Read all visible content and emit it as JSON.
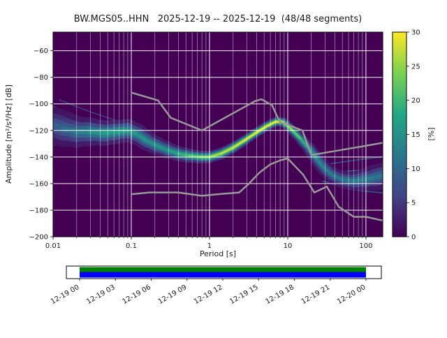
{
  "chart_data": {
    "type": "heatmap",
    "title": "BW.MGS05..HHN   2025-12-19 -- 2025-12-19  (48/48 segments)",
    "xlabel": "Period [s]",
    "ylabel": "Amplitude [m²/s⁴/Hz] [dB]",
    "xscale": "log",
    "xlim": [
      0.01,
      164
    ],
    "ylim": [
      -200,
      -46
    ],
    "grid": true,
    "grid_color": "#ffffff",
    "xticks": {
      "values": [
        0.01,
        0.1,
        1,
        10,
        100
      ],
      "labels": [
        "0.01",
        "0.1",
        "1",
        "10",
        "100"
      ]
    },
    "yticks": {
      "values": [
        -60,
        -80,
        -100,
        -120,
        -140,
        -160,
        -180,
        -200
      ],
      "labels": [
        "−60",
        "−80",
        "−100",
        "−120",
        "−140",
        "−160",
        "−180",
        "−200"
      ]
    },
    "colorbar": {
      "label": "[%]",
      "min": 0,
      "max": 30,
      "ticks": [
        0,
        5,
        10,
        15,
        20,
        25,
        30
      ],
      "stops": [
        "#440154",
        "#414487",
        "#2a788e",
        "#22a884",
        "#7ad151",
        "#fde725"
      ]
    },
    "ridge": {
      "comment": "PPSD mode ridge: [period_s, amplitude_dB, half_spread_dB, peak_percent]",
      "points": [
        [
          0.01,
          -116.0,
          13.0,
          8
        ],
        [
          0.014,
          -119.0,
          11.0,
          10
        ],
        [
          0.02,
          -121.0,
          10.0,
          12
        ],
        [
          0.03,
          -121.0,
          9.0,
          14
        ],
        [
          0.045,
          -122.0,
          8.0,
          16
        ],
        [
          0.065,
          -121.0,
          8.0,
          17
        ],
        [
          0.09,
          -120.0,
          7.0,
          17
        ],
        [
          0.12,
          -123.0,
          7.0,
          15
        ],
        [
          0.16,
          -128.0,
          6.0,
          15
        ],
        [
          0.22,
          -132.0,
          6.0,
          15
        ],
        [
          0.3,
          -135.0,
          5.0,
          16
        ],
        [
          0.4,
          -137.5,
          5.0,
          18
        ],
        [
          0.55,
          -139.0,
          4.5,
          21
        ],
        [
          0.75,
          -140.0,
          4.0,
          24
        ],
        [
          1.0,
          -140.0,
          4.0,
          25
        ],
        [
          1.4,
          -137.5,
          3.5,
          27
        ],
        [
          2.0,
          -133.0,
          3.5,
          28
        ],
        [
          2.8,
          -127.5,
          3.0,
          29
        ],
        [
          4.0,
          -121.5,
          3.0,
          30
        ],
        [
          5.5,
          -116.5,
          3.0,
          30
        ],
        [
          7.0,
          -113.5,
          3.0,
          30
        ],
        [
          8.5,
          -113.5,
          3.0,
          29
        ],
        [
          10.0,
          -116.5,
          3.0,
          27
        ],
        [
          12.0,
          -121.0,
          3.0,
          24
        ],
        [
          15.0,
          -127.0,
          3.5,
          21
        ],
        [
          19.0,
          -134.0,
          4.0,
          17
        ],
        [
          24.0,
          -142.0,
          4.5,
          15
        ],
        [
          30.0,
          -149.0,
          5.0,
          13
        ],
        [
          38.0,
          -154.0,
          5.0,
          12
        ],
        [
          50.0,
          -157.0,
          5.5,
          12
        ],
        [
          70.0,
          -158.0,
          6.0,
          13
        ],
        [
          95.0,
          -157.0,
          7.0,
          13
        ],
        [
          130.0,
          -155.5,
          8.0,
          12
        ],
        [
          164.0,
          -154.0,
          9.0,
          11
        ]
      ]
    },
    "strands": [
      {
        "t": 0.45,
        "w": 2,
        "opacity": 0.8,
        "pts": [
          [
            0.01,
            -102
          ],
          [
            0.02,
            -109
          ],
          [
            0.04,
            -115
          ],
          [
            0.09,
            -118
          ]
        ]
      },
      {
        "t": 0.4,
        "w": 2,
        "opacity": 0.8,
        "pts": [
          [
            0.01,
            -109
          ],
          [
            0.025,
            -115
          ],
          [
            0.06,
            -119
          ]
        ]
      },
      {
        "t": 0.5,
        "w": 2,
        "opacity": 0.8,
        "pts": [
          [
            0.01,
            -124
          ],
          [
            0.03,
            -124
          ],
          [
            0.07,
            -122
          ]
        ]
      },
      {
        "t": 0.35,
        "w": 2,
        "opacity": 0.8,
        "pts": [
          [
            0.01,
            -131
          ],
          [
            0.04,
            -128
          ],
          [
            0.09,
            -123
          ]
        ]
      },
      {
        "t": 0.3,
        "w": 1.5,
        "opacity": 0.7,
        "pts": [
          [
            0.012,
            -97
          ],
          [
            0.03,
            -106
          ],
          [
            0.06,
            -112
          ],
          [
            0.1,
            -116
          ]
        ]
      },
      {
        "t": 0.3,
        "w": 2,
        "opacity": 0.7,
        "pts": [
          [
            28,
            -146
          ],
          [
            60,
            -143
          ],
          [
            110,
            -141
          ],
          [
            164,
            -140
          ]
        ]
      },
      {
        "t": 0.35,
        "w": 2,
        "opacity": 0.7,
        "pts": [
          [
            28,
            -158
          ],
          [
            60,
            -164
          ],
          [
            110,
            -166
          ],
          [
            164,
            -167
          ]
        ]
      },
      {
        "t": 0.45,
        "w": 2,
        "opacity": 0.7,
        "pts": [
          [
            35,
            -152
          ],
          [
            80,
            -150
          ],
          [
            164,
            -147
          ]
        ]
      }
    ],
    "noise_models": {
      "color": "#999999",
      "nhnm": {
        "points": [
          [
            0.1,
            -91.5
          ],
          [
            0.15,
            -94.5
          ],
          [
            0.22,
            -97.4
          ],
          [
            0.27,
            -104.6
          ],
          [
            0.32,
            -110.5
          ],
          [
            0.5,
            -115.1
          ],
          [
            0.8,
            -120.0
          ],
          [
            1.5,
            -111.1
          ],
          [
            2.5,
            -103.9
          ],
          [
            3.8,
            -98.0
          ],
          [
            4.6,
            -96.5
          ],
          [
            5.5,
            -99.1
          ],
          [
            6.3,
            -101.0
          ],
          [
            7.0,
            -106.8
          ],
          [
            7.9,
            -113.5
          ],
          [
            11.0,
            -116.7
          ],
          [
            15.4,
            -120.0
          ],
          [
            17.5,
            -129.1
          ],
          [
            20.0,
            -138.5
          ],
          [
            40.0,
            -135.5
          ],
          [
            80.0,
            -132.5
          ],
          [
            164.0,
            -129.3
          ]
        ]
      },
      "nlnm": {
        "points": [
          [
            0.1,
            -168.0
          ],
          [
            0.17,
            -166.7
          ],
          [
            0.4,
            -166.7
          ],
          [
            0.8,
            -169.2
          ],
          [
            1.24,
            -168.1
          ],
          [
            2.4,
            -166.7
          ],
          [
            3.2,
            -160.0
          ],
          [
            4.3,
            -152.0
          ],
          [
            5.0,
            -149.0
          ],
          [
            6.0,
            -145.5
          ],
          [
            8.0,
            -142.5
          ],
          [
            10.0,
            -141.1
          ],
          [
            12.0,
            -146.0
          ],
          [
            15.6,
            -153.0
          ],
          [
            21.9,
            -166.7
          ],
          [
            31.6,
            -162.2
          ],
          [
            45.0,
            -177.5
          ],
          [
            70.0,
            -185.0
          ],
          [
            101.0,
            -185.0
          ],
          [
            154.0,
            -187.5
          ],
          [
            164.0,
            -187.5
          ]
        ]
      }
    }
  },
  "timeline": {
    "tick_labels": [
      "12-19 00",
      "12-19 03",
      "12-19 06",
      "12-19 09",
      "12-19 12",
      "12-19 15",
      "12-19 18",
      "12-19 21",
      "12-20 00"
    ],
    "coverage": {
      "top_color": "#008000",
      "bottom_color": "#0000ff",
      "background": "#ffffff"
    }
  }
}
